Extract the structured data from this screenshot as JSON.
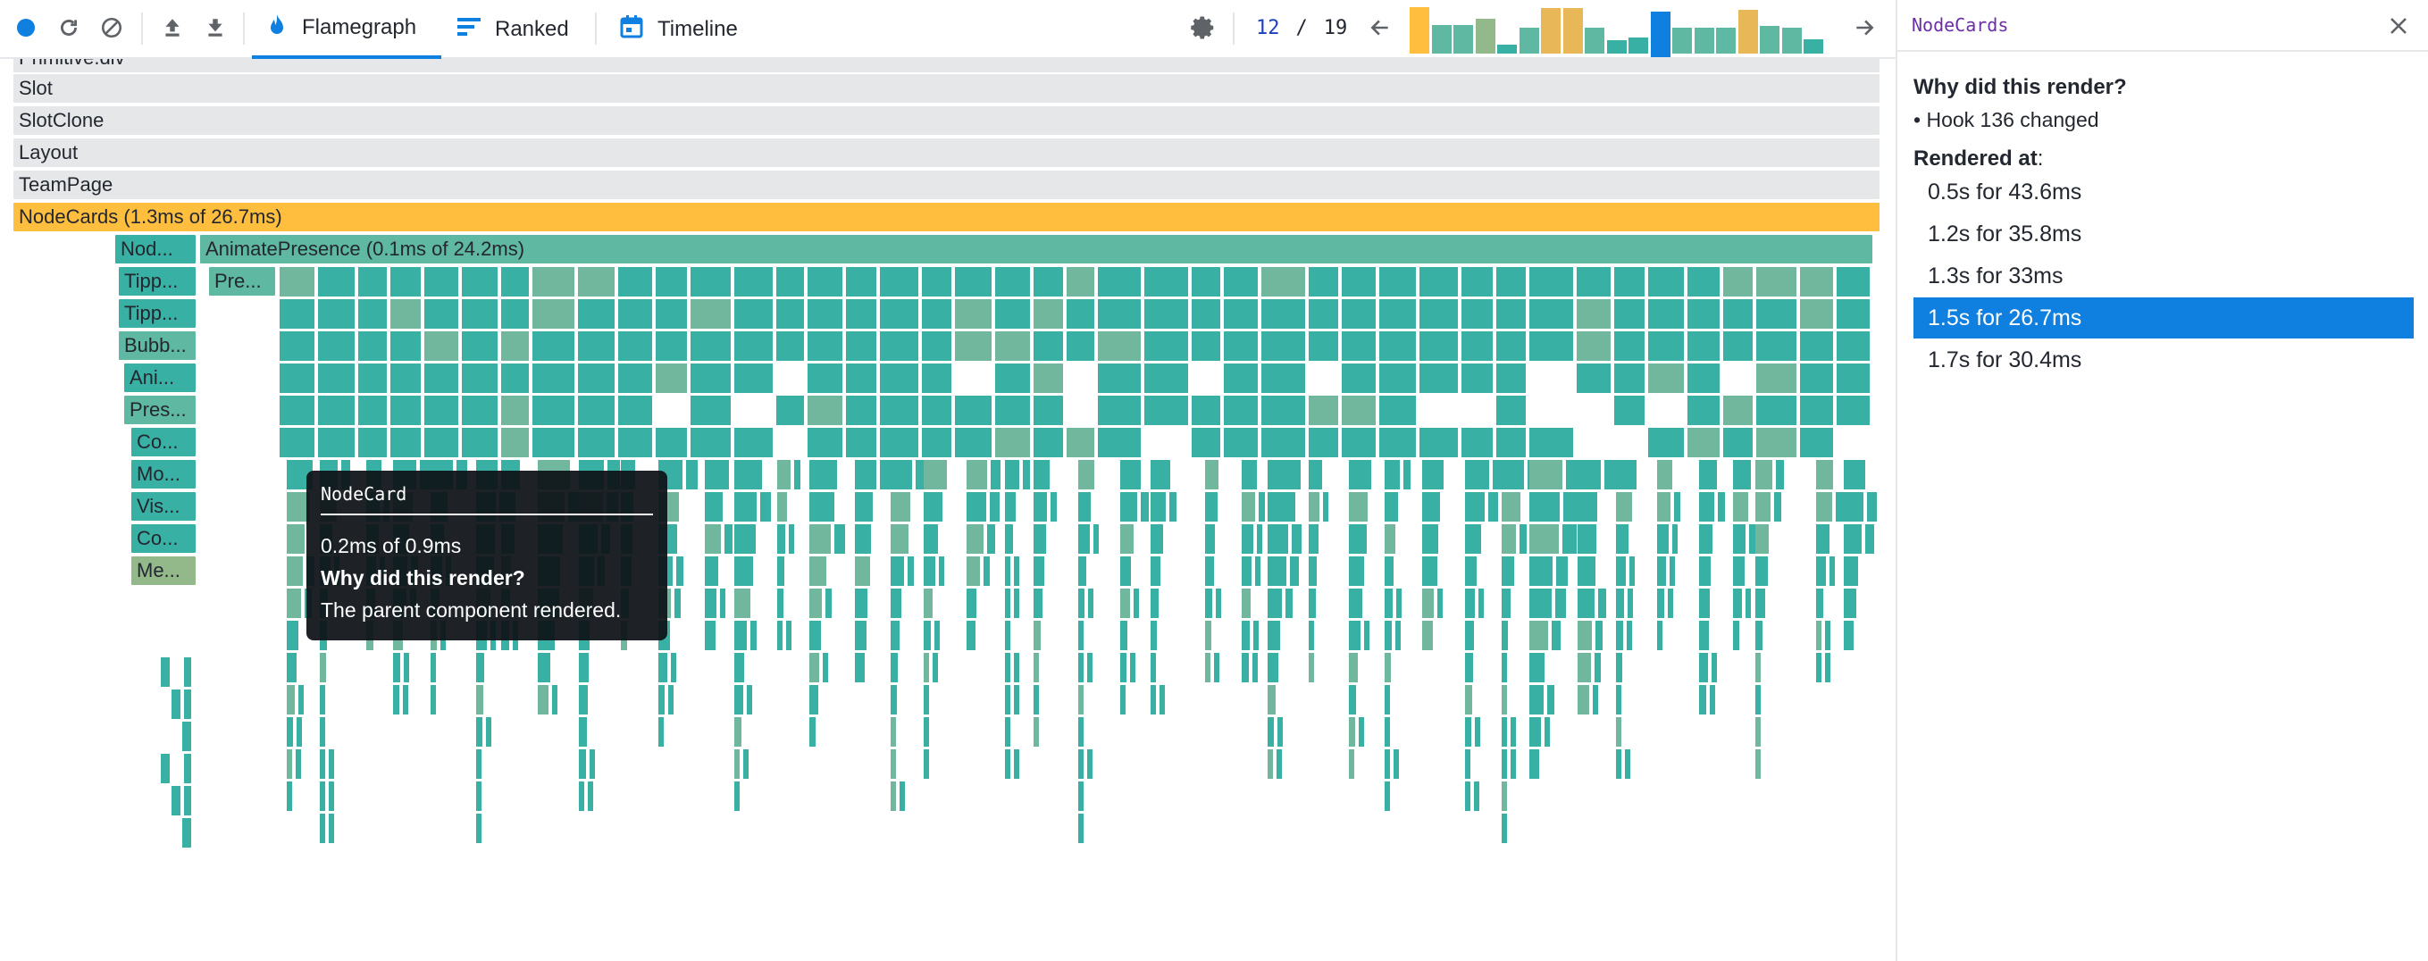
{
  "toolbar": {
    "tabs": [
      {
        "label": "Flamegraph",
        "icon": "flame-icon",
        "active": true
      },
      {
        "label": "Ranked",
        "icon": "ranked-icon",
        "active": false
      },
      {
        "label": "Timeline",
        "icon": "calendar-icon",
        "active": false
      }
    ],
    "commit_current": "12",
    "commit_sep": "/",
    "commit_total": "19",
    "accent_color": "#0f7fe0",
    "commit_bars": [
      {
        "level": 1.0,
        "color": "#ffbe3d"
      },
      {
        "level": 0.62,
        "color": "#5fb8a2"
      },
      {
        "level": 0.62,
        "color": "#5fb8a2"
      },
      {
        "level": 0.75,
        "color": "#93b88a"
      },
      {
        "level": 0.2,
        "color": "#39b0a4"
      },
      {
        "level": 0.55,
        "color": "#5fb8a2"
      },
      {
        "level": 0.98,
        "color": "#e8b858"
      },
      {
        "level": 0.98,
        "color": "#e8b858"
      },
      {
        "level": 0.55,
        "color": "#5fb8a2"
      },
      {
        "level": 0.28,
        "color": "#39b0a4"
      },
      {
        "level": 0.35,
        "color": "#39b0a4"
      },
      {
        "level": 0.9,
        "color": "#0f7fe0"
      },
      {
        "level": 0.55,
        "color": "#5fb8a2"
      },
      {
        "level": 0.55,
        "color": "#5fb8a2"
      },
      {
        "level": 0.55,
        "color": "#5fb8a2"
      },
      {
        "level": 0.95,
        "color": "#e8b858"
      },
      {
        "level": 0.6,
        "color": "#5fb8a2"
      },
      {
        "level": 0.55,
        "color": "#5fb8a2"
      },
      {
        "level": 0.3,
        "color": "#39b0a4"
      }
    ]
  },
  "flamegraph": {
    "rows": [
      {
        "label": "Primitive.div",
        "color": "gray"
      },
      {
        "label": "Slot",
        "color": "gray"
      },
      {
        "label": "SlotClone",
        "color": "gray"
      },
      {
        "label": "Layout",
        "color": "gray"
      },
      {
        "label": "TeamPage",
        "color": "gray"
      },
      {
        "label": "NodeCards (1.3ms of 26.7ms)",
        "color": "yellow"
      }
    ],
    "animate_presence": "AnimatePresence (0.1ms of 24.2ms)",
    "left_stack": [
      "Nod...",
      "Tipp...",
      "Tipp...",
      "Bubb...",
      "Ani...",
      "Pres...",
      "Co...",
      "Mo...",
      "Vis...",
      "Co...",
      "Me..."
    ],
    "pre_label": "Pre..."
  },
  "tooltip": {
    "title": "NodeCard",
    "duration": "0.2ms of 0.9ms",
    "why_heading": "Why did this render?",
    "reason": "The parent component rendered."
  },
  "sidebar": {
    "title": "NodeCards",
    "why_heading": "Why did this render?",
    "why_reason": "Hook 136 changed",
    "rendered_heading": "Rendered at",
    "rendered_colon": ":",
    "renders": [
      {
        "label": "0.5s for 43.6ms",
        "selected": false
      },
      {
        "label": "1.2s for 35.8ms",
        "selected": false
      },
      {
        "label": "1.3s for 33ms",
        "selected": false
      },
      {
        "label": "1.5s for 26.7ms",
        "selected": true
      },
      {
        "label": "1.7s for 30.4ms",
        "selected": false
      }
    ]
  }
}
